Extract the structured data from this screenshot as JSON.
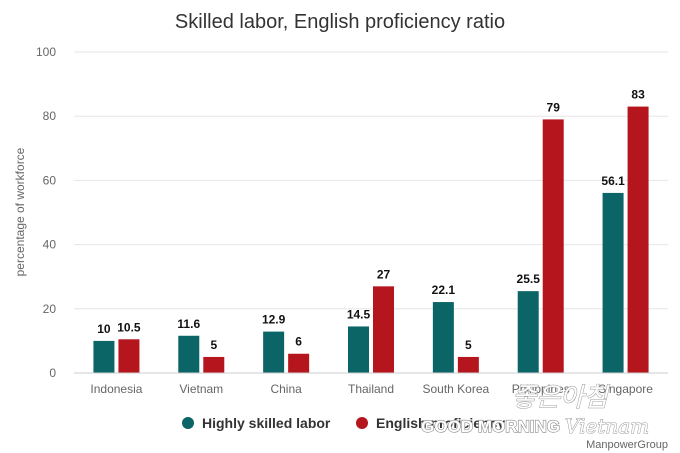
{
  "chart_data": {
    "type": "bar",
    "title": "Skilled labor, English proficiency ratio",
    "ylabel": "percentage of workforce",
    "xlabel": "",
    "ylim": [
      0,
      100
    ],
    "yticks": [
      0,
      20,
      40,
      60,
      80,
      100
    ],
    "categories": [
      "Indonesia",
      "Vietnam",
      "China",
      "Thailand",
      "South Korea",
      "Philippines",
      "Singapore"
    ],
    "series": [
      {
        "name": "Highly skilled labor",
        "color": "#0b6466",
        "values": [
          10,
          11.6,
          12.9,
          14.5,
          22.1,
          25.5,
          56.1
        ]
      },
      {
        "name": "English proficiency",
        "color": "#b5161d",
        "values": [
          10.5,
          5,
          6,
          27,
          5,
          79,
          83
        ]
      }
    ],
    "data_labels": [
      [
        "10",
        "11.6",
        "12.9",
        "14.5",
        "22.1",
        "25.5",
        "56.1"
      ],
      [
        "10.5",
        "5",
        "6",
        "27",
        "5",
        "79",
        "83"
      ]
    ],
    "legend_position": "bottom",
    "grid": true
  },
  "watermark": {
    "script": "좋은아침",
    "main": "GOOD MORNING",
    "accent": "Vietnam",
    "source": "ManpowerGroup"
  }
}
